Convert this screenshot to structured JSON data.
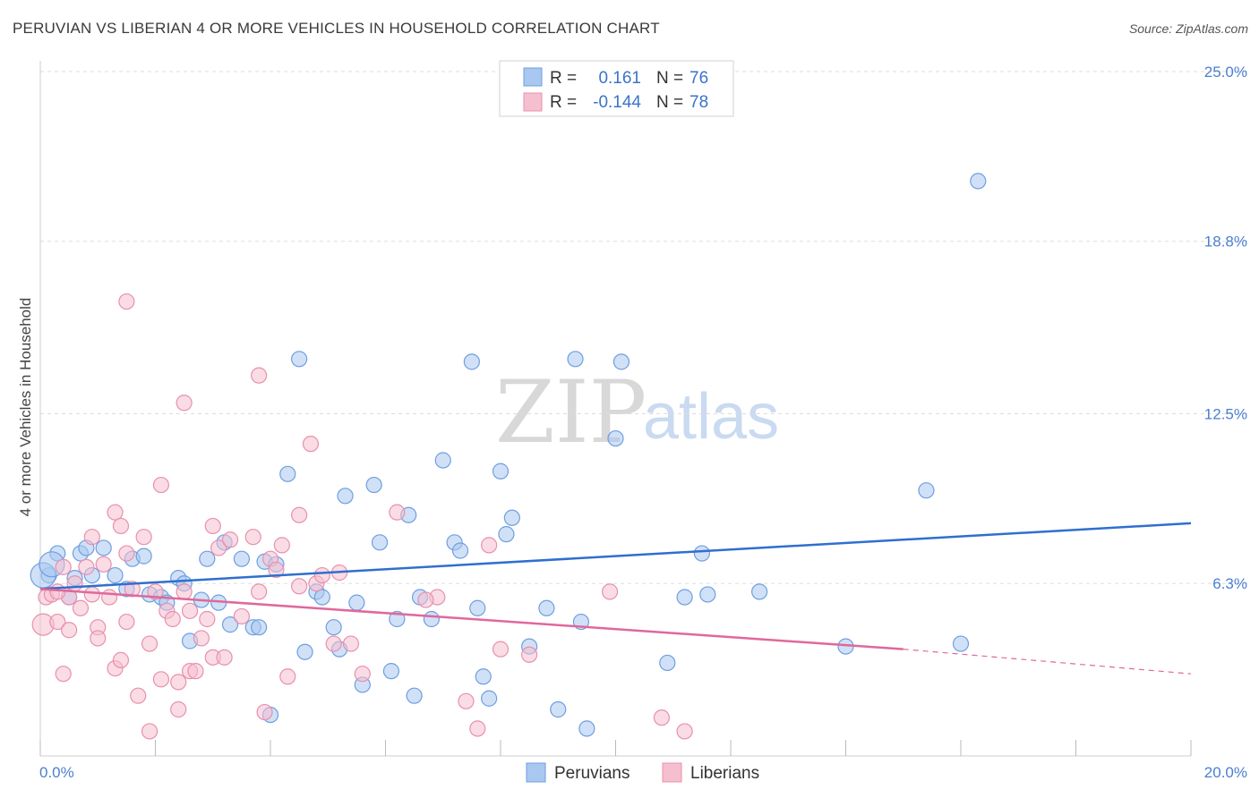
{
  "title": "PERUVIAN VS LIBERIAN 4 OR MORE VEHICLES IN HOUSEHOLD CORRELATION CHART",
  "source": "Source: ZipAtlas.com",
  "watermark": {
    "zip": "ZIP",
    "atlas": "atlas"
  },
  "colors": {
    "blue_fill": "#a9c8f0",
    "blue_stroke": "#6f9ee0",
    "blue_line": "#2f6fcf",
    "pink_fill": "#f6bfd0",
    "pink_stroke": "#e890ad",
    "pink_line": "#e0689a",
    "tick_text": "#4a7fd0",
    "grid": "#dddddd"
  },
  "legend": {
    "row1": {
      "r_label": "R =",
      "r_value": "0.161",
      "n_label": "N =",
      "n_value": "76"
    },
    "row2": {
      "r_label": "R =",
      "r_value": "-0.144",
      "n_label": "N =",
      "n_value": "78"
    }
  },
  "chart_data": {
    "type": "scatter",
    "title": "PERUVIAN VS LIBERIAN 4 OR MORE VEHICLES IN HOUSEHOLD CORRELATION CHART",
    "xlabel": "",
    "ylabel": "4 or more Vehicles in Household",
    "xlim": [
      0,
      20
    ],
    "ylim": [
      0,
      25
    ],
    "x_tick_labels": [
      "0.0%",
      "20.0%"
    ],
    "y_ticks": [
      6.3,
      12.5,
      18.8,
      25.0
    ],
    "y_tick_labels": [
      "6.3%",
      "12.5%",
      "18.8%",
      "25.0%"
    ],
    "legend_position": "bottom",
    "series": [
      {
        "name": "Peruvians",
        "color": "#a9c8f0",
        "trend": {
          "x": [
            0,
            20
          ],
          "y": [
            6.1,
            8.5
          ]
        },
        "points": [
          [
            0.15,
            6.6
          ],
          [
            0.3,
            7.4
          ],
          [
            0.5,
            5.8
          ],
          [
            0.6,
            6.5
          ],
          [
            0.7,
            7.4
          ],
          [
            0.8,
            7.6
          ],
          [
            0.9,
            6.6
          ],
          [
            1.1,
            7.6
          ],
          [
            1.3,
            6.6
          ],
          [
            1.5,
            6.1
          ],
          [
            1.6,
            7.2
          ],
          [
            1.8,
            7.3
          ],
          [
            1.9,
            5.9
          ],
          [
            2.1,
            5.8
          ],
          [
            2.2,
            5.6
          ],
          [
            2.4,
            6.5
          ],
          [
            2.5,
            6.3
          ],
          [
            2.6,
            4.2
          ],
          [
            2.8,
            5.7
          ],
          [
            2.9,
            7.2
          ],
          [
            3.1,
            5.6
          ],
          [
            3.2,
            7.8
          ],
          [
            3.3,
            4.8
          ],
          [
            3.5,
            7.2
          ],
          [
            3.7,
            4.7
          ],
          [
            3.8,
            4.7
          ],
          [
            3.9,
            7.1
          ],
          [
            4.0,
            1.5
          ],
          [
            4.1,
            7.0
          ],
          [
            4.3,
            10.3
          ],
          [
            4.5,
            14.5
          ],
          [
            4.6,
            3.8
          ],
          [
            4.8,
            6.0
          ],
          [
            4.9,
            5.8
          ],
          [
            5.1,
            4.7
          ],
          [
            5.2,
            3.9
          ],
          [
            5.3,
            9.5
          ],
          [
            5.5,
            5.6
          ],
          [
            5.6,
            2.6
          ],
          [
            5.8,
            9.9
          ],
          [
            5.9,
            7.8
          ],
          [
            6.1,
            3.1
          ],
          [
            6.2,
            5.0
          ],
          [
            6.4,
            8.8
          ],
          [
            6.5,
            2.2
          ],
          [
            6.6,
            5.8
          ],
          [
            6.8,
            5.0
          ],
          [
            7.0,
            10.8
          ],
          [
            7.2,
            7.8
          ],
          [
            7.3,
            7.5
          ],
          [
            7.5,
            14.4
          ],
          [
            7.6,
            5.4
          ],
          [
            7.7,
            2.9
          ],
          [
            7.8,
            2.1
          ],
          [
            8.0,
            10.4
          ],
          [
            8.1,
            8.1
          ],
          [
            8.2,
            8.7
          ],
          [
            8.5,
            4.0
          ],
          [
            8.8,
            5.4
          ],
          [
            9.0,
            1.7
          ],
          [
            9.3,
            14.5
          ],
          [
            9.5,
            1.0
          ],
          [
            9.4,
            4.9
          ],
          [
            10.0,
            11.6
          ],
          [
            10.1,
            14.4
          ],
          [
            10.9,
            3.4
          ],
          [
            11.2,
            5.8
          ],
          [
            11.5,
            7.4
          ],
          [
            11.6,
            5.9
          ],
          [
            12.5,
            6.0
          ],
          [
            14.0,
            4.0
          ],
          [
            15.4,
            9.7
          ],
          [
            16.0,
            4.1
          ],
          [
            16.3,
            21.0
          ],
          [
            0.05,
            6.6
          ],
          [
            0.2,
            7.0
          ]
        ]
      },
      {
        "name": "Liberians",
        "color": "#f6bfd0",
        "trend": {
          "x": [
            0,
            15
          ],
          "y": [
            6.1,
            3.9
          ]
        },
        "trend_dashed": {
          "x": [
            15,
            20
          ],
          "y": [
            3.9,
            3.0
          ]
        },
        "points": [
          [
            0.05,
            4.8
          ],
          [
            0.1,
            5.8
          ],
          [
            0.2,
            5.9
          ],
          [
            0.3,
            4.9
          ],
          [
            0.4,
            6.9
          ],
          [
            0.4,
            3.0
          ],
          [
            0.5,
            4.6
          ],
          [
            0.5,
            5.8
          ],
          [
            0.6,
            6.3
          ],
          [
            0.7,
            5.4
          ],
          [
            0.8,
            6.9
          ],
          [
            0.9,
            5.9
          ],
          [
            0.9,
            8.0
          ],
          [
            1.0,
            4.7
          ],
          [
            1.0,
            4.3
          ],
          [
            1.1,
            7.0
          ],
          [
            1.2,
            5.8
          ],
          [
            1.3,
            8.9
          ],
          [
            1.3,
            3.2
          ],
          [
            1.4,
            8.4
          ],
          [
            1.4,
            3.5
          ],
          [
            1.5,
            4.9
          ],
          [
            1.5,
            7.4
          ],
          [
            1.6,
            6.1
          ],
          [
            1.7,
            2.2
          ],
          [
            1.8,
            8.0
          ],
          [
            1.9,
            4.1
          ],
          [
            1.9,
            0.9
          ],
          [
            2.0,
            6.0
          ],
          [
            2.1,
            2.8
          ],
          [
            2.1,
            9.9
          ],
          [
            2.2,
            5.3
          ],
          [
            2.3,
            5.0
          ],
          [
            2.4,
            1.7
          ],
          [
            2.4,
            2.7
          ],
          [
            2.5,
            6.0
          ],
          [
            2.6,
            3.1
          ],
          [
            2.6,
            5.3
          ],
          [
            2.7,
            3.1
          ],
          [
            2.8,
            4.3
          ],
          [
            2.9,
            5.0
          ],
          [
            3.0,
            3.6
          ],
          [
            3.0,
            8.4
          ],
          [
            3.1,
            7.6
          ],
          [
            3.2,
            3.6
          ],
          [
            3.3,
            7.9
          ],
          [
            3.5,
            5.1
          ],
          [
            3.7,
            8.0
          ],
          [
            3.8,
            6.0
          ],
          [
            3.9,
            1.6
          ],
          [
            4.0,
            7.2
          ],
          [
            4.1,
            6.8
          ],
          [
            4.2,
            7.7
          ],
          [
            4.3,
            2.9
          ],
          [
            4.5,
            8.8
          ],
          [
            4.7,
            11.4
          ],
          [
            4.8,
            6.3
          ],
          [
            4.9,
            6.6
          ],
          [
            5.1,
            4.1
          ],
          [
            5.4,
            4.1
          ],
          [
            5.6,
            3.0
          ],
          [
            6.2,
            8.9
          ],
          [
            6.9,
            5.8
          ],
          [
            7.4,
            2.0
          ],
          [
            7.6,
            1.0
          ],
          [
            7.8,
            7.7
          ],
          [
            8.0,
            3.9
          ],
          [
            8.5,
            3.7
          ],
          [
            9.9,
            6.0
          ],
          [
            10.8,
            1.4
          ],
          [
            11.2,
            0.9
          ],
          [
            1.5,
            16.6
          ],
          [
            3.8,
            13.9
          ],
          [
            2.5,
            12.9
          ],
          [
            4.5,
            6.2
          ],
          [
            0.3,
            6.0
          ],
          [
            5.2,
            6.7
          ],
          [
            6.7,
            5.7
          ]
        ]
      }
    ]
  },
  "bottom_legend": {
    "peruvians": "Peruvians",
    "liberians": "Liberians"
  }
}
